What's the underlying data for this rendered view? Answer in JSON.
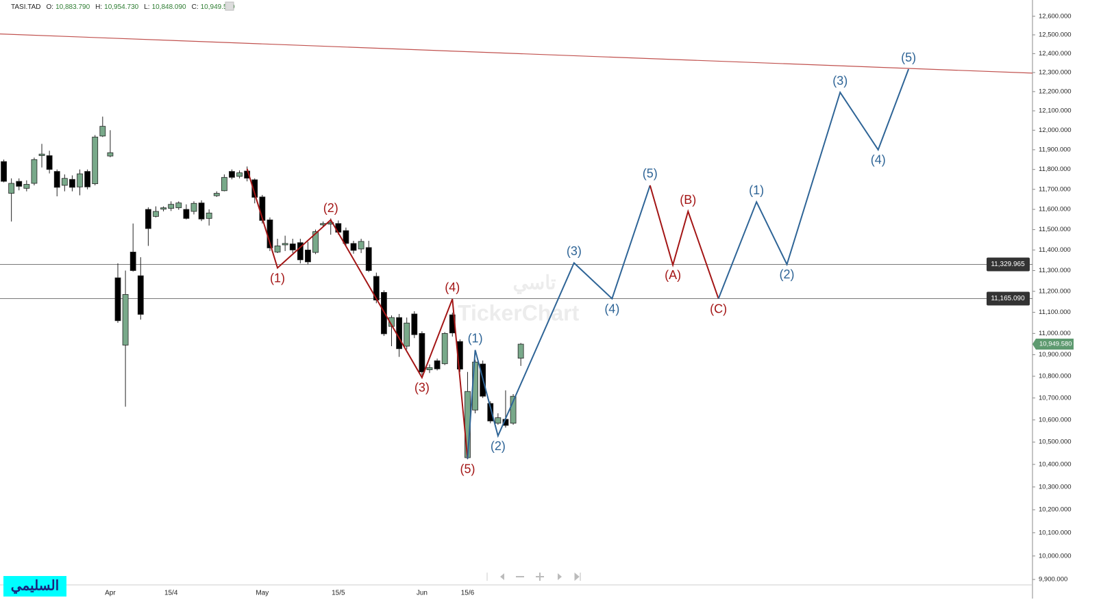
{
  "chart_data": {
    "type": "candlestick",
    "symbol": "TASI.TAD",
    "header": [
      {
        "key": "O:",
        "value": "10,883.790"
      },
      {
        "key": "H:",
        "value": "10,954.730"
      },
      {
        "key": "L:",
        "value": "10,848.090"
      },
      {
        "key": "C:",
        "value": "10,949.580"
      }
    ],
    "log": true,
    "up_color": "#79a98a",
    "down_color": "#000000",
    "categories": [
      null,
      null,
      null,
      null,
      null,
      null,
      null,
      null,
      null,
      null,
      null,
      null,
      null,
      null,
      "Apr",
      null,
      null,
      null,
      null,
      null,
      null,
      null,
      "15/4",
      null,
      null,
      null,
      null,
      null,
      null,
      null,
      null,
      null,
      null,
      null,
      "May",
      null,
      null,
      null,
      null,
      null,
      null,
      null,
      null,
      null,
      "15/5",
      null,
      null,
      null,
      null,
      null,
      null,
      null,
      null,
      null,
      null,
      "Jun",
      null,
      null,
      null,
      null,
      null,
      "15/6",
      null,
      null,
      null,
      null,
      null,
      null,
      null
    ],
    "open": [
      11840,
      11680,
      11740,
      11705,
      11730,
      11870,
      11870,
      11790,
      11720,
      11750,
      11712,
      11790,
      11728,
      11970,
      11868,
      11265,
      10945,
      11390,
      11275,
      11600,
      11565,
      11601,
      11605,
      11608,
      11600,
      11590,
      11632,
      11555,
      11668,
      11693,
      11790,
      11765,
      11792,
      11748,
      11662,
      11548,
      11390,
      11425,
      11430,
      11436,
      11400,
      11388,
      11523,
      11527,
      11530,
      11495,
      11432,
      11405,
      11412,
      11272,
      11195,
      11033,
      11075,
      10940,
      11092,
      11000,
      10830,
      10872,
      10858,
      11088,
      10962,
      10430,
      10645,
      10857,
      10675,
      10585,
      10603,
      10585,
      10883.79
    ],
    "high": [
      11850,
      11755,
      11755,
      11745,
      11860,
      11930,
      11895,
      11800,
      11775,
      11770,
      11800,
      11800,
      11975,
      12070,
      12000,
      11335,
      11300,
      11530,
      11365,
      11610,
      11615,
      11615,
      11640,
      11640,
      11625,
      11640,
      11645,
      11600,
      11690,
      11775,
      11800,
      11795,
      11815,
      11755,
      11672,
      11560,
      11455,
      11470,
      11455,
      11455,
      11440,
      11500,
      11540,
      11555,
      11545,
      11510,
      11445,
      11455,
      11445,
      11290,
      11205,
      11085,
      11092,
      11075,
      11105,
      11010,
      10855,
      10882,
      11006,
      11098,
      10972,
      10820,
      10877,
      10873,
      10685,
      10630,
      10735,
      10718,
      10954.73
    ],
    "low": [
      11735,
      11540,
      11695,
      11690,
      11720,
      11810,
      11780,
      11665,
      11690,
      11690,
      11670,
      11700,
      11720,
      11965,
      11862,
      11050,
      10660,
      11295,
      11065,
      11420,
      11560,
      11590,
      11592,
      11598,
      11550,
      11575,
      11542,
      11520,
      11662,
      11690,
      11750,
      11755,
      11740,
      11630,
      11530,
      11395,
      11385,
      11395,
      11385,
      11335,
      11330,
      11380,
      11512,
      11475,
      11475,
      11418,
      11382,
      11385,
      11293,
      11143,
      10988,
      10940,
      10890,
      10925,
      10978,
      10805,
      10815,
      10827,
      10852,
      10985,
      10820,
      10423,
      10630,
      10700,
      10585,
      10578,
      10565,
      10578,
      10848.09
    ],
    "close": [
      11740,
      11730,
      11715,
      11725,
      11850,
      11878,
      11800,
      11710,
      11755,
      11710,
      11778,
      11712,
      11965,
      12020,
      11885,
      11060,
      11185,
      11300,
      11090,
      11505,
      11590,
      11608,
      11625,
      11632,
      11555,
      11630,
      11552,
      11582,
      11680,
      11760,
      11760,
      11783,
      11756,
      11660,
      11545,
      11410,
      11420,
      11432,
      11400,
      11352,
      11342,
      11490,
      11530,
      11535,
      11487,
      11432,
      11398,
      11442,
      11300,
      11158,
      10998,
      11075,
      10928,
      11049,
      10994,
      10820,
      10840,
      10834,
      11000,
      11002,
      10833,
      10730,
      10866,
      10708,
      10595,
      10610,
      10575,
      10708,
      10949.58
    ],
    "last_price": {
      "value": 10949.58,
      "label": "10,949.580",
      "color": "#5e9a70"
    },
    "xlim": [
      -0.5,
      135.3
    ],
    "ylim": [
      9877,
      12688
    ],
    "yticks": [
      {
        "value": 9900,
        "label": "9,900.000"
      },
      {
        "value": 10000,
        "label": "10,000.000"
      },
      {
        "value": 10100,
        "label": "10,100.000"
      },
      {
        "value": 10200,
        "label": "10,200.000"
      },
      {
        "value": 10300,
        "label": "10,300.000"
      },
      {
        "value": 10400,
        "label": "10,400.000"
      },
      {
        "value": 10500,
        "label": "10,500.000"
      },
      {
        "value": 10600,
        "label": "10,600.000"
      },
      {
        "value": 10700,
        "label": "10,700.000"
      },
      {
        "value": 10800,
        "label": "10,800.000"
      },
      {
        "value": 10900,
        "label": "10,900.000"
      },
      {
        "value": 11000,
        "label": "11,000.000"
      },
      {
        "value": 11100,
        "label": "11,100.000"
      },
      {
        "value": 11200,
        "label": "11,200.000"
      },
      {
        "value": 11300,
        "label": "11,300.000"
      },
      {
        "value": 11400,
        "label": "11,400.000"
      },
      {
        "value": 11500,
        "label": "11,500.000"
      },
      {
        "value": 11600,
        "label": "11,600.000"
      },
      {
        "value": 11700,
        "label": "11,700.000"
      },
      {
        "value": 11800,
        "label": "11,800.000"
      },
      {
        "value": 11900,
        "label": "11,900.000"
      },
      {
        "value": 12000,
        "label": "12,000.000"
      },
      {
        "value": 12100,
        "label": "12,100.000"
      },
      {
        "value": 12200,
        "label": "12,200.000"
      },
      {
        "value": 12300,
        "label": "12,300.000"
      },
      {
        "value": 12400,
        "label": "12,400.000"
      },
      {
        "value": 12500,
        "label": "12,500.000"
      },
      {
        "value": 12600,
        "label": "12,600.000"
      }
    ],
    "hlines": [
      {
        "value": 11329.965,
        "label": "11,329.965"
      },
      {
        "value": 11165.09,
        "label": "11,165.090"
      }
    ],
    "trendline": {
      "color": "#c0504d",
      "start": 12505,
      "end": 12297
    },
    "waves": [
      {
        "color": "#a31515",
        "points": [
          {
            "x": 32,
            "price": 11803
          },
          {
            "x": 36,
            "price": 11313,
            "label": "(1)"
          },
          {
            "x": 43,
            "price": 11548,
            "label": "(2)"
          },
          {
            "x": 55,
            "price": 10794,
            "label": "(3)"
          },
          {
            "x": 59,
            "price": 11163,
            "label": "(4)"
          },
          {
            "x": 61,
            "price": 10425,
            "label": "(5)"
          }
        ]
      },
      {
        "color": "#2e6496",
        "points": [
          {
            "x": 62,
            "price": 10922,
            "label": "(1)"
          },
          {
            "x": 65,
            "price": 10528,
            "label": "(2)"
          },
          {
            "x": 75,
            "price": 11337,
            "label": "(3)"
          },
          {
            "x": 80,
            "price": 11165,
            "label": "(4)"
          },
          {
            "x": 85,
            "price": 11720,
            "label": "(5)"
          }
        ]
      },
      {
        "color": "#a31515",
        "points": [
          {
            "x": 88,
            "price": 11327,
            "label": "(A)"
          },
          {
            "x": 90,
            "price": 11590,
            "label": "(B)"
          },
          {
            "x": 94,
            "price": 11165,
            "label": "(C)"
          }
        ]
      },
      {
        "color": "#2e6496",
        "points": [
          {
            "x": 99,
            "price": 11637,
            "label": "(1)"
          },
          {
            "x": 103,
            "price": 11330,
            "label": "(2)"
          },
          {
            "x": 110,
            "price": 12196,
            "label": "(3)"
          },
          {
            "x": 115,
            "price": 11900,
            "label": "(4)"
          },
          {
            "x": 119,
            "price": 12318,
            "label": "(5)"
          }
        ]
      }
    ],
    "watermark": {
      "text": "TickerChart",
      "arabic": "تاسي"
    },
    "logo": "السليمي"
  }
}
